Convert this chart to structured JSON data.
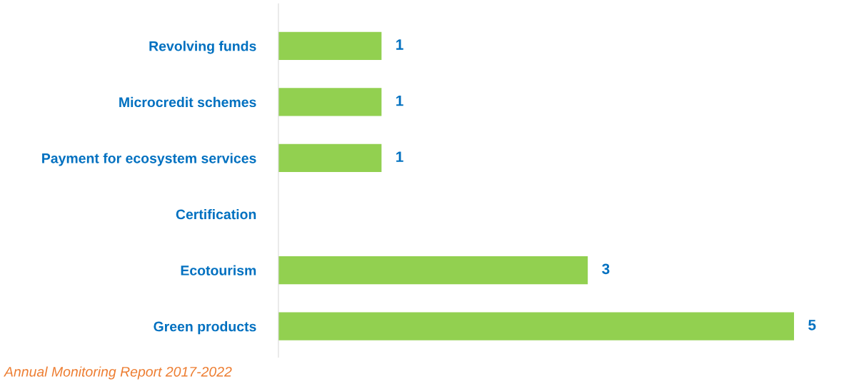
{
  "chart_data": {
    "type": "bar",
    "orientation": "horizontal",
    "categories": [
      "Revolving funds",
      "Microcredit schemes",
      "Payment for ecosystem services",
      "Certification",
      "Ecotourism",
      "Green products"
    ],
    "values": [
      1,
      1,
      1,
      0,
      3,
      5
    ],
    "value_labels": [
      "1",
      "1",
      "1",
      null,
      "3",
      "5"
    ],
    "color": "#92d050",
    "annotations": [
      "Annual Monitoring Report 2017-2022"
    ],
    "grid": false,
    "legend": false
  }
}
